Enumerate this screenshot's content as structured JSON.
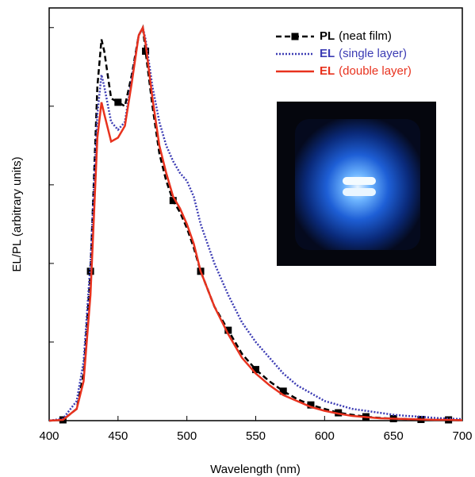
{
  "chart_data": {
    "type": "line",
    "xlabel": "Wavelength (nm)",
    "ylabel": "EL/PL (arbitrary units)",
    "xlim": [
      400,
      700
    ],
    "xticks": [
      400,
      450,
      500,
      550,
      600,
      650,
      700
    ],
    "ylim": [
      0,
      1.05
    ],
    "yticks": [
      0,
      0.2,
      0.4,
      0.6,
      0.8,
      1.0
    ],
    "ytick_labels": false,
    "x": [
      400,
      410,
      420,
      425,
      430,
      435,
      438,
      440,
      445,
      450,
      455,
      460,
      465,
      468,
      470,
      475,
      480,
      485,
      490,
      495,
      500,
      505,
      510,
      520,
      530,
      540,
      550,
      560,
      570,
      580,
      590,
      600,
      610,
      620,
      630,
      640,
      650,
      660,
      670,
      680,
      690,
      700
    ],
    "series": [
      {
        "name": "PL",
        "note": "(neat film)",
        "color": "#000000",
        "dash": "dashed",
        "marker": "square",
        "values": [
          0,
          0.002,
          0.03,
          0.12,
          0.38,
          0.85,
          0.97,
          0.94,
          0.82,
          0.81,
          0.8,
          0.88,
          0.98,
          1.0,
          0.94,
          0.8,
          0.68,
          0.61,
          0.56,
          0.53,
          0.49,
          0.44,
          0.38,
          0.29,
          0.23,
          0.17,
          0.13,
          0.1,
          0.075,
          0.055,
          0.04,
          0.03,
          0.02,
          0.015,
          0.01,
          0.007,
          0.005,
          0.004,
          0.003,
          0.002,
          0.002,
          0.001
        ]
      },
      {
        "name": "EL",
        "note": "(single layer)",
        "color": "#3c3cb4",
        "dash": "dotted",
        "values": [
          0,
          0.005,
          0.05,
          0.15,
          0.4,
          0.78,
          0.88,
          0.85,
          0.76,
          0.74,
          0.76,
          0.87,
          0.98,
          1.0,
          0.97,
          0.85,
          0.76,
          0.7,
          0.66,
          0.63,
          0.61,
          0.57,
          0.5,
          0.4,
          0.32,
          0.25,
          0.2,
          0.16,
          0.12,
          0.09,
          0.07,
          0.05,
          0.04,
          0.03,
          0.025,
          0.02,
          0.015,
          0.012,
          0.01,
          0.007,
          0.005,
          0.004
        ]
      },
      {
        "name": "EL",
        "note": "(double layer)",
        "color": "#e8321e",
        "dash": "solid",
        "values": [
          0,
          0.002,
          0.03,
          0.1,
          0.32,
          0.72,
          0.81,
          0.78,
          0.71,
          0.72,
          0.75,
          0.86,
          0.98,
          1.0,
          0.96,
          0.82,
          0.7,
          0.63,
          0.57,
          0.54,
          0.5,
          0.45,
          0.38,
          0.29,
          0.22,
          0.16,
          0.12,
          0.09,
          0.065,
          0.05,
          0.035,
          0.025,
          0.018,
          0.012,
          0.009,
          0.006,
          0.005,
          0.004,
          0.003,
          0.002,
          0.002,
          0.001
        ]
      }
    ]
  }
}
